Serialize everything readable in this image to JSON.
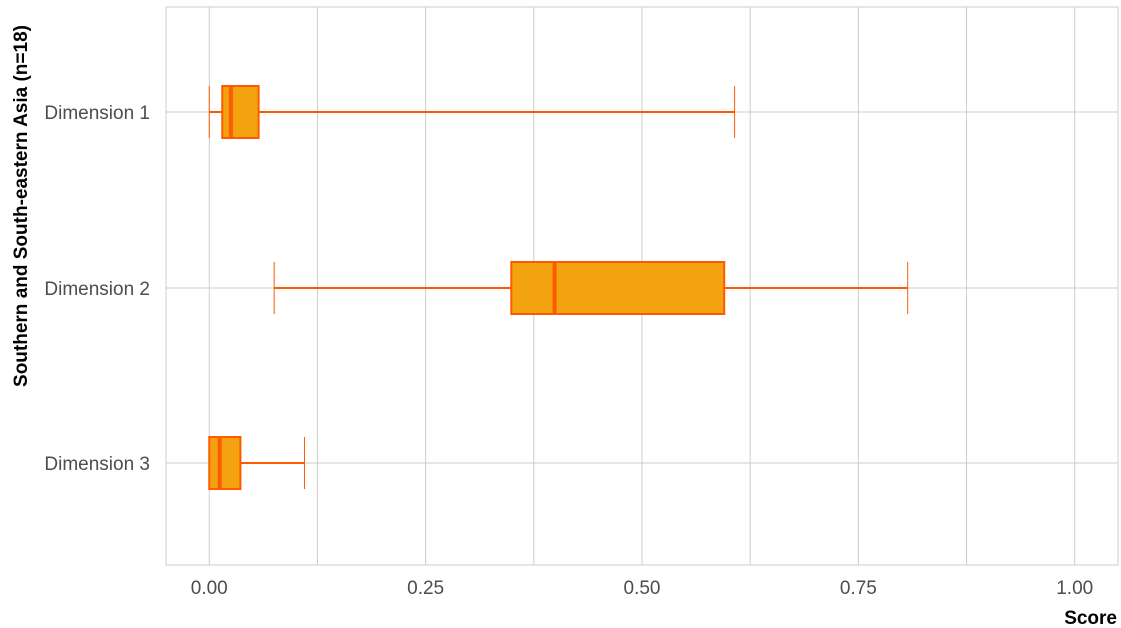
{
  "chart_data": {
    "type": "boxplot",
    "orientation": "horizontal",
    "title": "",
    "xlabel": "Score",
    "ylabel": "Southern and South-eastern Asia (n=18)",
    "xlim": [
      -0.05,
      1.05
    ],
    "x_ticks": [
      0.0,
      0.25,
      0.5,
      0.75,
      1.0
    ],
    "x_tick_labels": [
      "0.00",
      "0.25",
      "0.50",
      "0.75",
      "1.00"
    ],
    "x_minor_grid": [
      0.125,
      0.375,
      0.625,
      0.875
    ],
    "grid": true,
    "legend": "none",
    "categories": [
      "Dimension 1",
      "Dimension 2",
      "Dimension 3"
    ],
    "boxes": [
      {
        "label": "Dimension 1",
        "min": 0.0,
        "q1": 0.015,
        "median": 0.025,
        "q3": 0.057,
        "max": 0.607
      },
      {
        "label": "Dimension 2",
        "min": 0.075,
        "q1": 0.349,
        "median": 0.399,
        "q3": 0.595,
        "max": 0.807
      },
      {
        "label": "Dimension 3",
        "min": 0.0,
        "q1": 0.0,
        "median": 0.012,
        "q3": 0.036,
        "max": 0.11
      }
    ],
    "colors": {
      "box_fill": "#f2a30f",
      "box_stroke": "#ff5a00",
      "median": "#ff5a00",
      "whisker": "#ff5a00",
      "grid": "#cccccc",
      "tick_text": "#4d4d4d",
      "axis_title": "#000000"
    }
  }
}
